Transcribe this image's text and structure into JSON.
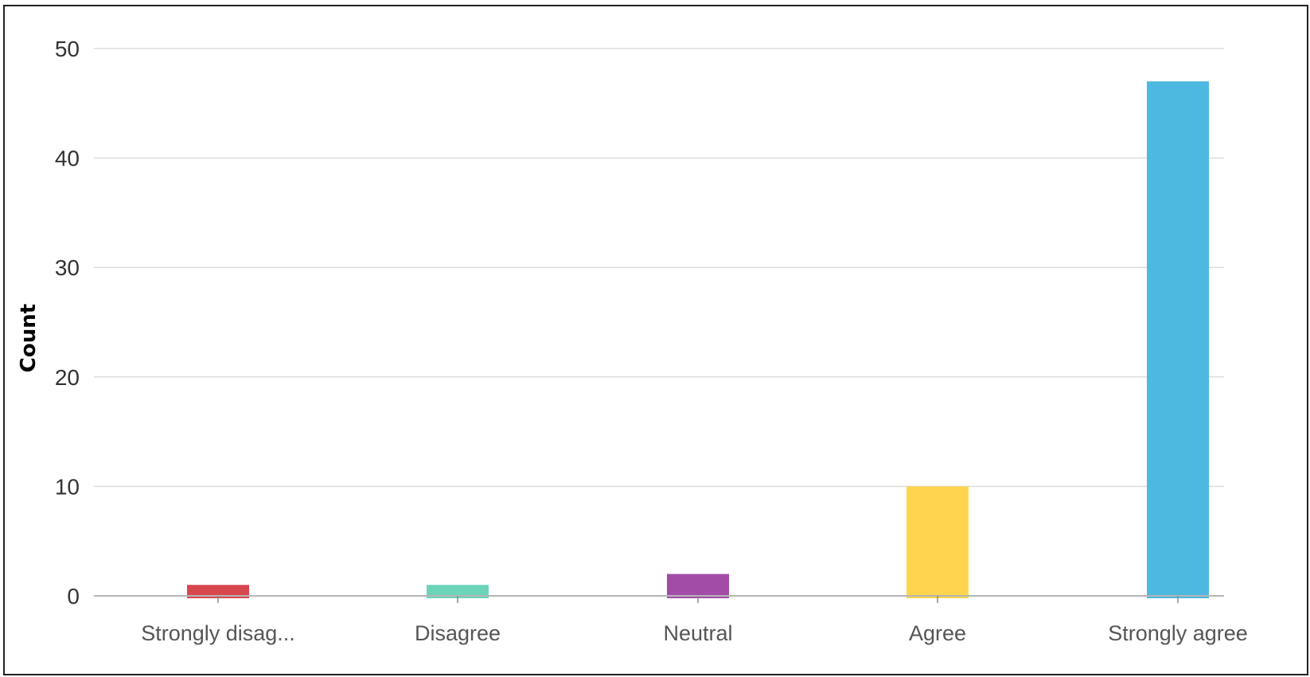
{
  "chart_data": {
    "type": "bar",
    "title": "",
    "xlabel": "",
    "ylabel": "Count",
    "categories": [
      "Strongly disag...",
      "Disagree",
      "Neutral",
      "Agree",
      "Strongly agree"
    ],
    "values": [
      1,
      1,
      2,
      10,
      47
    ],
    "colors": [
      "#d9474e",
      "#6bd4b9",
      "#a24ca8",
      "#ffd54f",
      "#4db8e0"
    ],
    "ylim": [
      0,
      50
    ],
    "yticks": [
      0,
      10,
      20,
      30,
      40,
      50
    ],
    "grid": true,
    "legend": "none"
  }
}
